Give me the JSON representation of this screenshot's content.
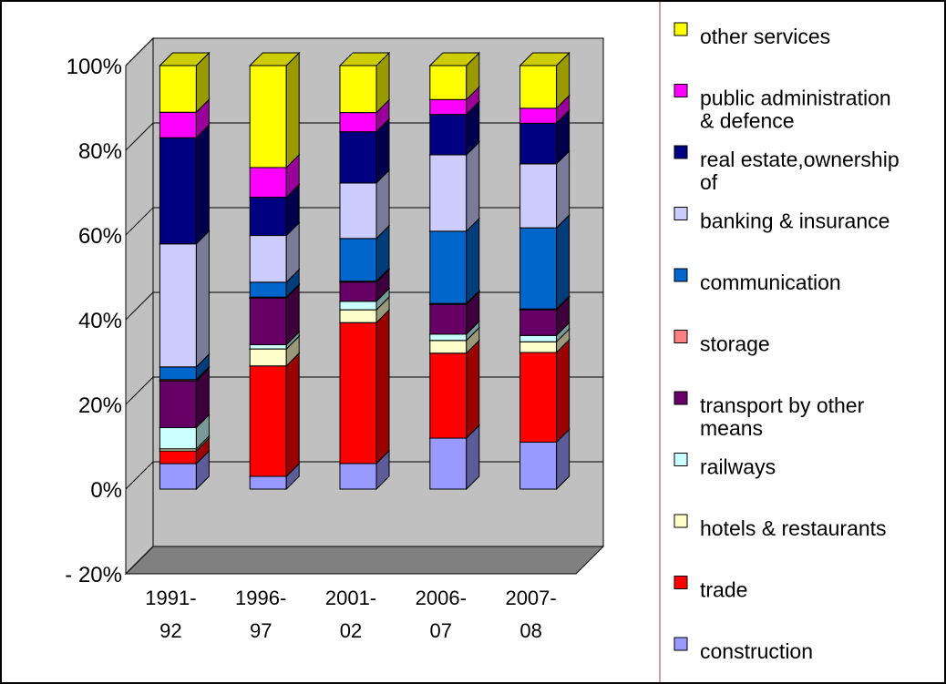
{
  "chart_data": {
    "type": "bar",
    "stacked": true,
    "percent_stacked": true,
    "three_d": true,
    "title": "",
    "xlabel": "",
    "ylabel": "",
    "ylim": [
      -20,
      100
    ],
    "y_ticks": [
      "- 20%",
      "0%",
      "20%",
      "40%",
      "60%",
      "80%",
      "100%"
    ],
    "y_tick_values": [
      -20,
      0,
      20,
      40,
      60,
      80,
      100
    ],
    "grid": true,
    "legend_position": "right",
    "categories": [
      [
        "1991-",
        "92"
      ],
      [
        "1996-",
        "97"
      ],
      [
        "2001-",
        "02"
      ],
      [
        "2006-",
        "07"
      ],
      [
        "2007-",
        "08"
      ]
    ],
    "series": [
      {
        "name": "construction",
        "color": "#9999FF",
        "values": [
          6,
          3,
          6,
          12,
          11
        ]
      },
      {
        "name": "trade",
        "color": "#FF0000",
        "values": [
          3,
          26,
          33,
          20,
          21
        ]
      },
      {
        "name": "hotels & restaurants",
        "color": "#FFFFCC",
        "values": [
          0.5,
          4,
          3,
          3,
          2.5
        ]
      },
      {
        "name": "railways",
        "color": "#CCFFFF",
        "values": [
          5,
          1,
          2,
          1.5,
          1.5
        ]
      },
      {
        "name": "transport by other means",
        "color": "#660066",
        "values": [
          11,
          11,
          4.5,
          7,
          6
        ]
      },
      {
        "name": "storage",
        "color": "#FF8080",
        "values": [
          0.3,
          0.2,
          0.2,
          0.2,
          0.2
        ]
      },
      {
        "name": "communication",
        "color": "#0066CC",
        "values": [
          3,
          3.5,
          10,
          17,
          19
        ]
      },
      {
        "name": "banking & insurance",
        "color": "#CCCCFF",
        "values": [
          29,
          11,
          13,
          18,
          15
        ]
      },
      {
        "name": "real estate,ownership of",
        "color": "#000080",
        "values": [
          25,
          9,
          12,
          9.5,
          9.5
        ]
      },
      {
        "name": "public administration & defence",
        "color": "#FF00FF",
        "values": [
          6,
          7,
          4.5,
          3.5,
          3.5
        ]
      },
      {
        "name": "other services",
        "color": "#FFFF00",
        "values": [
          11,
          24,
          11,
          8,
          10
        ]
      }
    ],
    "legend_lines": [
      [
        "other services"
      ],
      [
        "public administration",
        "& defence"
      ],
      [
        "real estate,ownership",
        "of"
      ],
      [
        "banking & insurance"
      ],
      [
        "communication"
      ],
      [
        " storage"
      ],
      [
        " transport by other",
        "means"
      ],
      [
        " railways"
      ],
      [
        "hotels & restaurants"
      ],
      [
        "trade"
      ],
      [
        "construction"
      ]
    ],
    "wall_color": "#C0C0C0",
    "floor_color": "#808080"
  }
}
